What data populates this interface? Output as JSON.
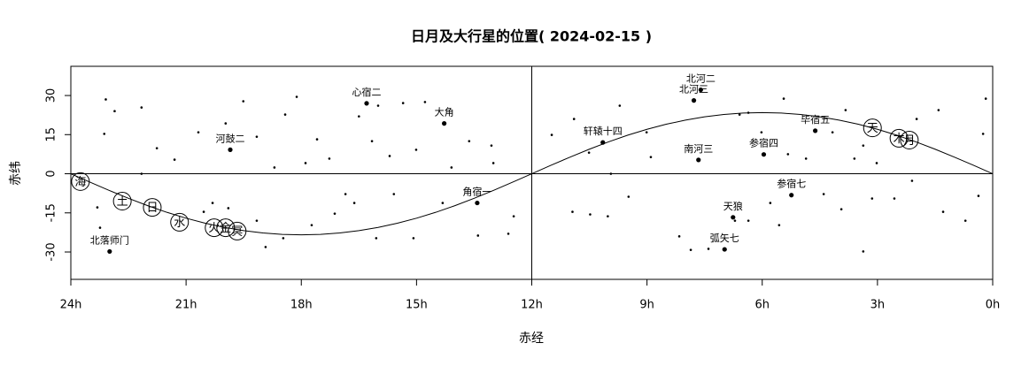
{
  "chart_data": {
    "type": "scatter",
    "title": "日月及大行星的位置( 2024-02-15 )",
    "xlabel": "赤经",
    "ylabel": "赤纬",
    "xlim": [
      24,
      0
    ],
    "ylim": [
      -40.5,
      41.2
    ],
    "xticks": [
      {
        "value": 24,
        "label": "24h"
      },
      {
        "value": 21,
        "label": "21h"
      },
      {
        "value": 18,
        "label": "18h"
      },
      {
        "value": 15,
        "label": "15h"
      },
      {
        "value": 12,
        "label": "12h"
      },
      {
        "value": 9,
        "label": "9h"
      },
      {
        "value": 6,
        "label": "6h"
      },
      {
        "value": 3,
        "label": "3h"
      },
      {
        "value": 0,
        "label": "0h"
      }
    ],
    "yticks": [
      -30,
      -15,
      0,
      15,
      30
    ],
    "vline": 12,
    "hline": 0,
    "color": "#000000",
    "stars": {
      "x": [
        23.09,
        22.86,
        23.13,
        22.16,
        21.76,
        22.16,
        21.3,
        20.68,
        19.97,
        19.51,
        19.16,
        18.7,
        18.42,
        18.12,
        17.59,
        17.27,
        17.89,
        16.85,
        16.5,
        16.16,
        16.0,
        15.7,
        15.59,
        15.08,
        16.05,
        16.62,
        17.13,
        17.73,
        18.47,
        18.93,
        19.16,
        19.9,
        20.54,
        20.31,
        23.24,
        23.31,
        14.32,
        14.09,
        13.63,
        13.05,
        13.0,
        12.61,
        12.47,
        13.4,
        14.78,
        15.01,
        15.35,
        11.48,
        10.9,
        10.94,
        10.48,
        10.02,
        9.94,
        9.48,
        8.9,
        9.01,
        8.16,
        7.86,
        7.4,
        6.71,
        6.36,
        6.59,
        6.36,
        6.02,
        5.79,
        5.56,
        5.44,
        5.33,
        4.86,
        4.4,
        4.17,
        3.83,
        3.94,
        3.37,
        3.02,
        3.14,
        2.56,
        2.1,
        1.98,
        1.41,
        1.29,
        0.71,
        0.18,
        0.25,
        0.37,
        3.37,
        3.6,
        9.71,
        10.51
      ],
      "y": [
        28.5,
        24,
        15.3,
        25.4,
        9.8,
        0,
        5.4,
        15.9,
        19.3,
        27.8,
        14.2,
        2.4,
        22.7,
        29.5,
        13.2,
        5.8,
        4.1,
        -7.8,
        22,
        12.5,
        26.1,
        6.8,
        -7.8,
        -24.7,
        -24.7,
        -11.2,
        -15.3,
        -19.7,
        -24.7,
        -28.1,
        -18,
        -13.2,
        -14.6,
        -11.2,
        -20.7,
        -12.9,
        -11.2,
        2.4,
        12.5,
        10.8,
        4.1,
        -23,
        -16.3,
        -23.7,
        27.5,
        9.2,
        27.1,
        14.9,
        21,
        -14.6,
        -15.6,
        -16.3,
        0,
        -8.8,
        6.4,
        15.9,
        -24,
        -29.2,
        -28.8,
        -18,
        -18,
        22.7,
        23.4,
        15.9,
        -11.2,
        -19.7,
        28.8,
        7.5,
        5.8,
        -7.8,
        15.9,
        24.4,
        -13.6,
        10.8,
        4.1,
        -9.5,
        -9.5,
        -2.7,
        21,
        24.4,
        -14.6,
        -18,
        28.8,
        15.3,
        -8.5,
        -29.8,
        5.8,
        26.1,
        8.1
      ]
    },
    "named_stars": [
      {
        "label": "北落师门",
        "x": 22.99,
        "y": -29.8
      },
      {
        "label": "河鼓二",
        "x": 19.85,
        "y": 9.2
      },
      {
        "label": "心宿二",
        "x": 16.3,
        "y": 27
      },
      {
        "label": "大角",
        "x": 14.28,
        "y": 19.3
      },
      {
        "label": "角宿一",
        "x": 13.42,
        "y": -11.2
      },
      {
        "label": "北河二",
        "x": 7.6,
        "y": 32.2
      },
      {
        "label": "北河三",
        "x": 7.78,
        "y": 28.1
      },
      {
        "label": "轩辕十四",
        "x": 10.15,
        "y": 12
      },
      {
        "label": "南河三",
        "x": 7.66,
        "y": 5.3
      },
      {
        "label": "参宿四",
        "x": 5.96,
        "y": 7.4
      },
      {
        "label": "毕宿五",
        "x": 4.62,
        "y": 16.5
      },
      {
        "label": "参宿七",
        "x": 5.24,
        "y": -8.2
      },
      {
        "label": "天狼",
        "x": 6.76,
        "y": -16.7
      },
      {
        "label": "弧矢七",
        "x": 6.98,
        "y": -29
      }
    ],
    "planets": [
      {
        "label": "海",
        "x": 23.75,
        "y": -3
      },
      {
        "label": "土",
        "x": 22.66,
        "y": -10.5
      },
      {
        "label": "日",
        "x": 21.88,
        "y": -12.9
      },
      {
        "label": "水",
        "x": 21.17,
        "y": -18.6
      },
      {
        "label": "火",
        "x": 20.27,
        "y": -20.7
      },
      {
        "label": "金",
        "x": 19.97,
        "y": -20.7
      },
      {
        "label": "冥",
        "x": 19.67,
        "y": -22
      },
      {
        "label": "天",
        "x": 3.13,
        "y": 17.6
      },
      {
        "label": "木",
        "x": 2.44,
        "y": 13.6
      },
      {
        "label": "月",
        "x": 2.17,
        "y": 12.9
      }
    ],
    "ecliptic": {
      "x": [
        0,
        0.5,
        1,
        1.5,
        2,
        2.5,
        3,
        3.5,
        4,
        4.5,
        5,
        5.5,
        6,
        6.5,
        7,
        7.5,
        8,
        8.5,
        9,
        9.5,
        10,
        10.5,
        11,
        11.5,
        12,
        12.5,
        13,
        13.5,
        14,
        14.5,
        15,
        15.5,
        16,
        16.5,
        17,
        17.5,
        18,
        18.5,
        19,
        19.5,
        20,
        20.5,
        21,
        21.5,
        22,
        22.5,
        23,
        23.5,
        24
      ],
      "y": [
        0,
        3.24,
        6.4,
        9.42,
        12.23,
        14.79,
        17.04,
        18.98,
        20.57,
        21.83,
        22.72,
        23.26,
        23.44,
        23.26,
        22.72,
        21.83,
        20.57,
        18.98,
        17.04,
        14.79,
        12.23,
        9.42,
        6.4,
        3.24,
        0,
        -3.24,
        -6.4,
        -9.42,
        -12.23,
        -14.79,
        -17.04,
        -18.98,
        -20.57,
        -21.83,
        -22.72,
        -23.26,
        -23.44,
        -23.26,
        -22.72,
        -21.83,
        -20.57,
        -18.98,
        -17.04,
        -14.79,
        -12.23,
        -9.42,
        -6.4,
        -3.24,
        0
      ]
    }
  }
}
